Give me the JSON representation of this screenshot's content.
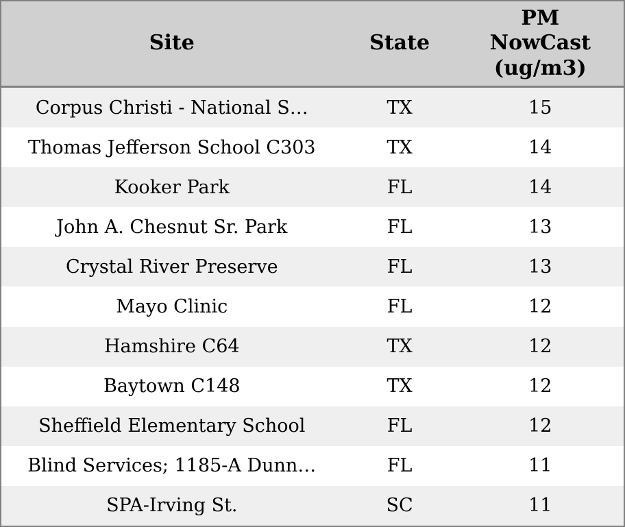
{
  "colors": {
    "header_bg": "#d0d0d0",
    "stripe_bg": "#efefef",
    "row_bg": "#ffffff",
    "border": "#808080",
    "text": "#000000"
  },
  "header": {
    "site": "Site",
    "state": "State",
    "pm": "PM\nNowCast\n(ug/m3)"
  },
  "rows": [
    {
      "site": "Corpus Christi - National S…",
      "state": "TX",
      "pm": "15"
    },
    {
      "site": "Thomas Jefferson School C303",
      "state": "TX",
      "pm": "14"
    },
    {
      "site": "Kooker Park",
      "state": "FL",
      "pm": "14"
    },
    {
      "site": "John A. Chesnut Sr. Park",
      "state": "FL",
      "pm": "13"
    },
    {
      "site": "Crystal River Preserve",
      "state": "FL",
      "pm": "13"
    },
    {
      "site": "Mayo Clinic",
      "state": "FL",
      "pm": "12"
    },
    {
      "site": "Hamshire C64",
      "state": "TX",
      "pm": "12"
    },
    {
      "site": "Baytown C148",
      "state": "TX",
      "pm": "12"
    },
    {
      "site": "Sheffield Elementary School",
      "state": "FL",
      "pm": "12"
    },
    {
      "site": "Blind Services; 1185-A Dunn…",
      "state": "FL",
      "pm": "11"
    },
    {
      "site": "SPA-Irving St.",
      "state": "SC",
      "pm": "11"
    }
  ],
  "chart_data": {
    "type": "table",
    "columns": [
      "Site",
      "State",
      "PM NowCast (ug/m3)"
    ],
    "rows": [
      [
        "Corpus Christi - National S…",
        "TX",
        15
      ],
      [
        "Thomas Jefferson School C303",
        "TX",
        14
      ],
      [
        "Kooker Park",
        "FL",
        14
      ],
      [
        "John A. Chesnut Sr. Park",
        "FL",
        13
      ],
      [
        "Crystal River Preserve",
        "FL",
        13
      ],
      [
        "Mayo Clinic",
        "FL",
        12
      ],
      [
        "Hamshire C64",
        "TX",
        12
      ],
      [
        "Baytown C148",
        "TX",
        12
      ],
      [
        "Sheffield Elementary School",
        "FL",
        12
      ],
      [
        "Blind Services; 1185-A Dunn…",
        "FL",
        11
      ],
      [
        "SPA-Irving St.",
        "SC",
        11
      ]
    ],
    "layout_hints": {
      "header_background": "#d0d0d0",
      "striped_rows": true,
      "stripe_color": "#efefef",
      "all_cells_centered": true
    }
  }
}
